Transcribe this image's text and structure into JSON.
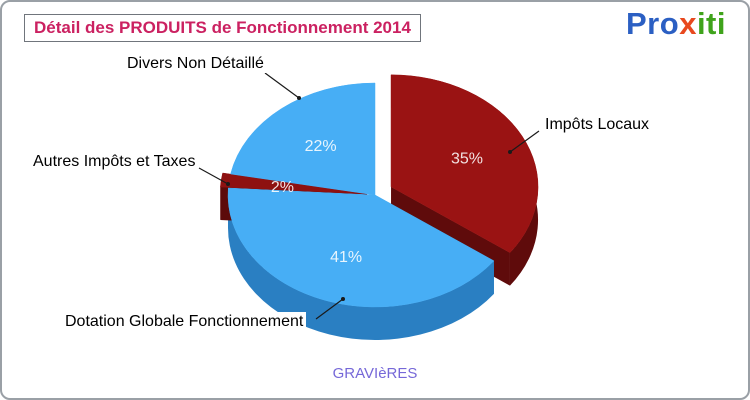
{
  "logo": {
    "name": "proxiti",
    "segments": [
      {
        "text": "Pro",
        "color": "#2b5fc3"
      },
      {
        "text": "x",
        "color": "#e8481e"
      },
      {
        "text": "iti",
        "color": "#3fa31b"
      }
    ]
  },
  "footer": {
    "commune": "GRAVIèRES"
  },
  "colors": {
    "title": "#cb2161",
    "title_border": "#70757c",
    "footer": "#7668d8",
    "leader_line": "#1a1a1a",
    "percent_label": "#ffffff"
  },
  "chart_data": {
    "type": "pie",
    "style": "3d-exploded",
    "title": "Détail des PRODUITS de Fonctionnement 2014",
    "direction": "clockwise",
    "start_angle_deg": 0,
    "value_suffix": "%",
    "legend_position": "callout-labels",
    "slices": [
      {
        "label": "Impôts Locaux",
        "value": 35,
        "color": "#9a1313",
        "side_color": "#5f0b0b",
        "exploded": true
      },
      {
        "label": "Dotation Globale Fonctionnement",
        "value": 41,
        "color": "#47aef5",
        "side_color": "#2a7fc2",
        "exploded": false
      },
      {
        "label": "Autres Impôts et Taxes",
        "value": 2,
        "color": "#8e1111",
        "side_color": "#5c0a0a",
        "exploded": true
      },
      {
        "label": "Divers Non Détaillé",
        "value": 22,
        "color": "#47aef5",
        "side_color": "#2a7fc2",
        "exploded": false
      }
    ]
  }
}
